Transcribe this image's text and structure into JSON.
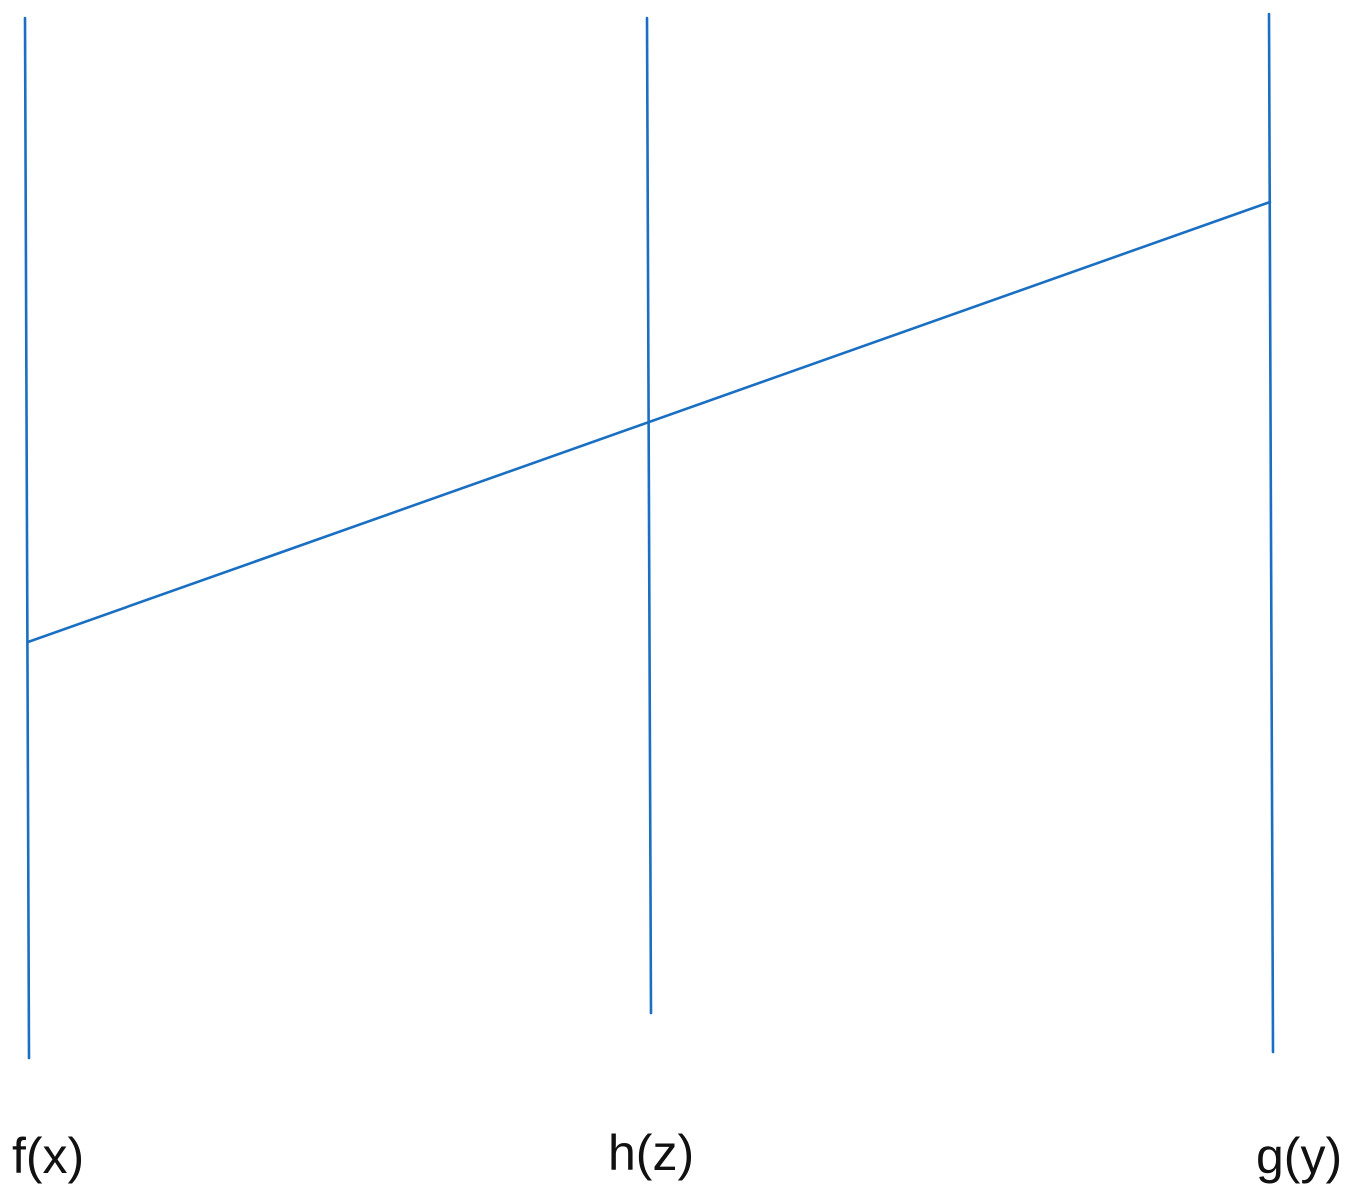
{
  "diagram": {
    "labels": {
      "left": "f(x)",
      "middle": "h(z)",
      "right": "g(y)"
    },
    "colors": {
      "line": "#1a6fc2",
      "text": "#111111",
      "background": "#ffffff"
    }
  }
}
